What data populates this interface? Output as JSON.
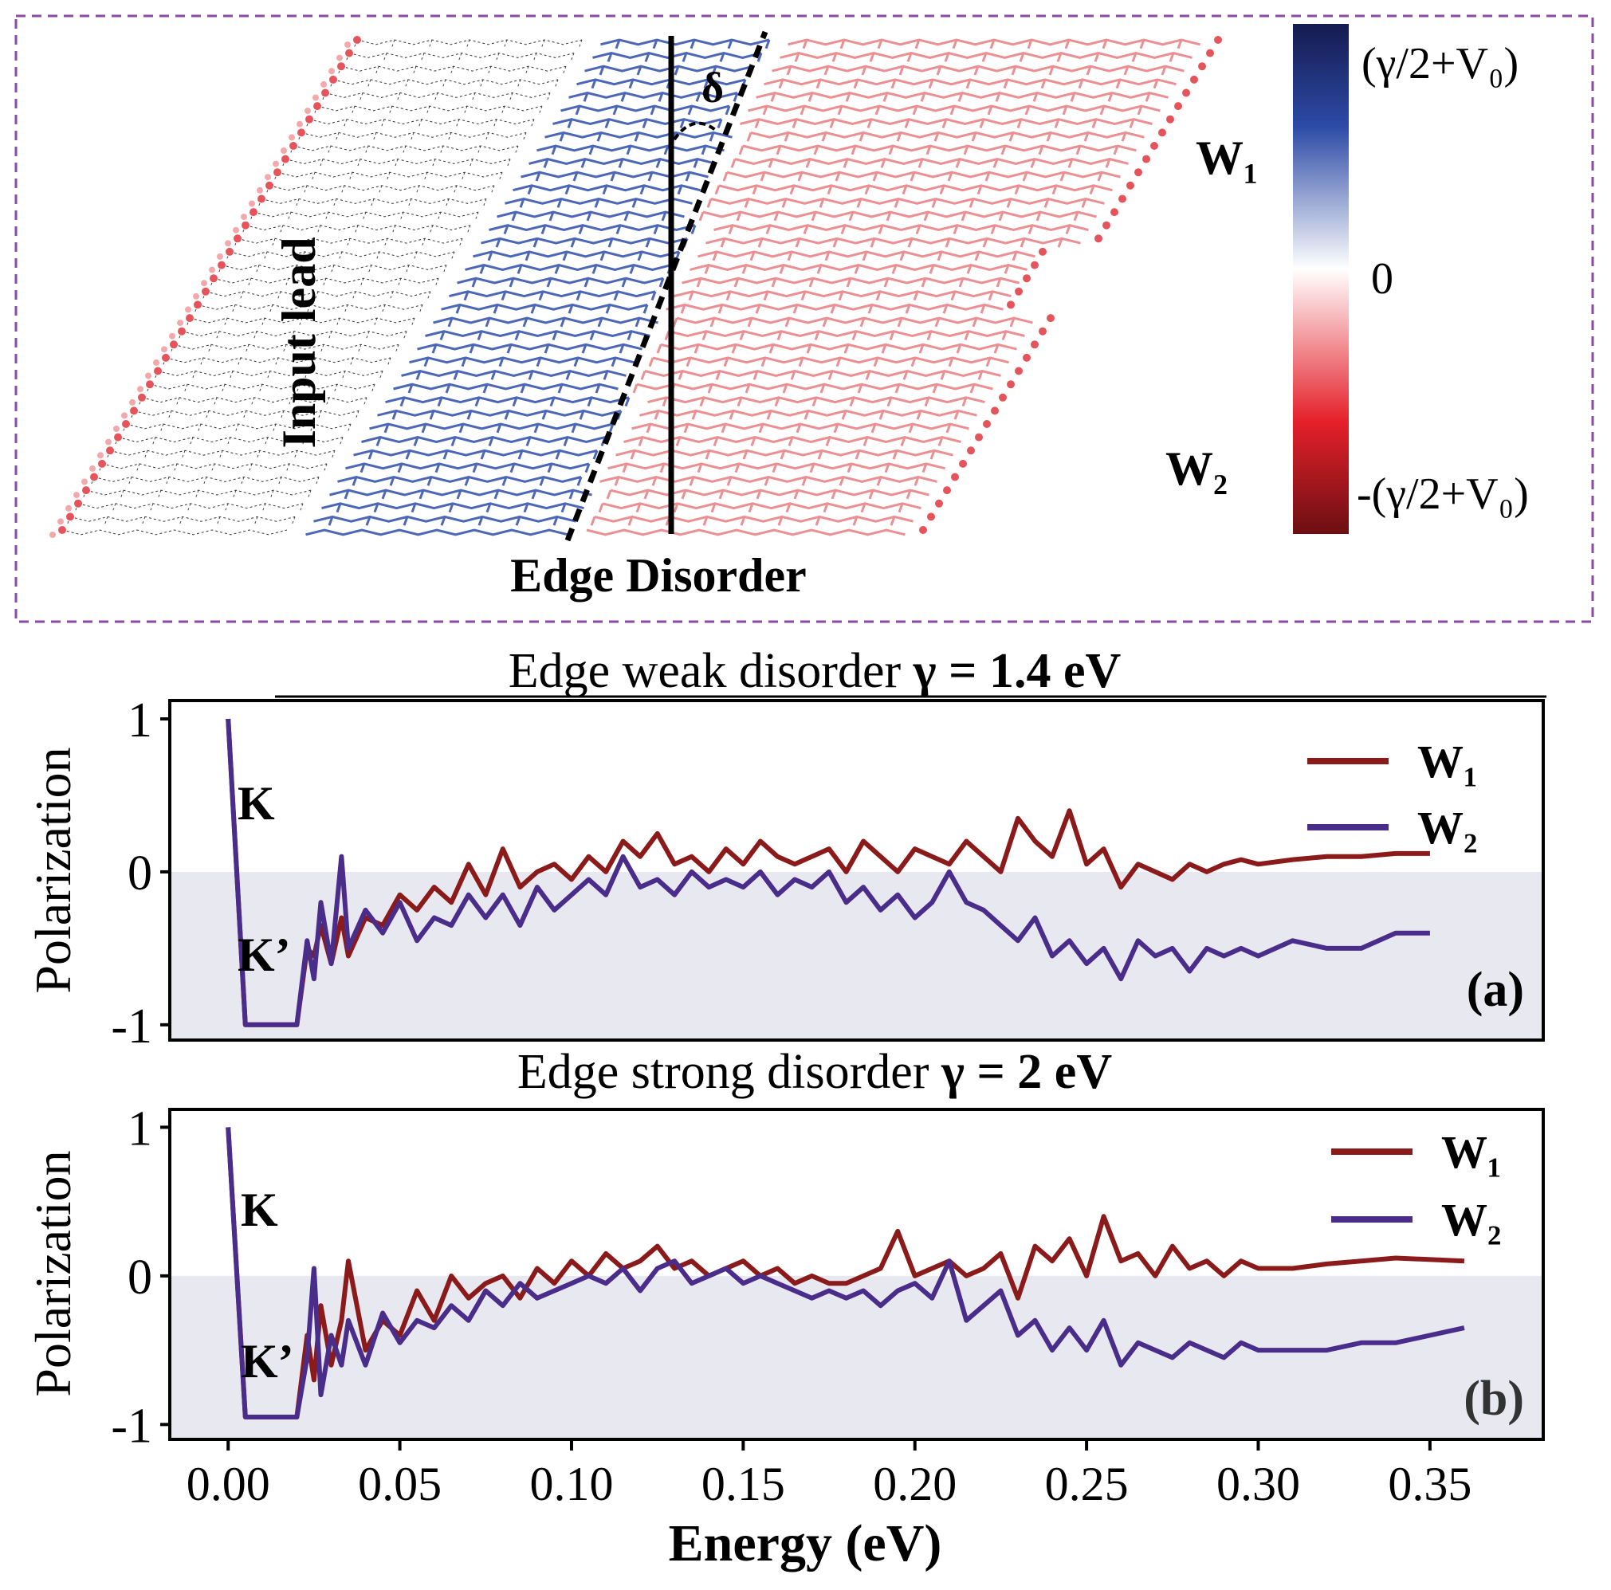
{
  "schematic": {
    "input_lead_label": "Input lead",
    "edge_disorder_label": "Edge Disorder",
    "angle_label": "δ",
    "w1_label": "W₁",
    "w2_label": "W₂",
    "colorbar": {
      "top_label": "(γ/2+V₀)",
      "mid_label": "0",
      "bottom_label": "-(γ/2+V₀)",
      "colors": [
        "#151b4f",
        "#2c4aa6",
        "#ffffff",
        "#e5202a",
        "#6b0f12"
      ]
    },
    "border_color": "#8b4aa3"
  },
  "chart_data": [
    {
      "type": "line",
      "title_plain": "Edge weak disorder ",
      "title_bold": "γ = 1.4 eV",
      "ylabel": "Polarization",
      "xlabel": "Energy (eV)",
      "xlim": [
        -0.017,
        0.383
      ],
      "ylim": [
        -1.1,
        1.12
      ],
      "yticks": [
        1,
        0,
        -1
      ],
      "ytick_labels": [
        "1",
        "0",
        "-1"
      ],
      "negative_shading": true,
      "panel_label": "(a)",
      "valley_labels": {
        "top": "K",
        "bottom": "K’"
      },
      "legend": {
        "position": "top-right",
        "entries": [
          "W₁",
          "W₂"
        ]
      },
      "series": [
        {
          "name": "W₁",
          "color": "#8b1a1a",
          "x": [
            0.0,
            0.005,
            0.01,
            0.015,
            0.02,
            0.023,
            0.025,
            0.027,
            0.03,
            0.033,
            0.035,
            0.04,
            0.045,
            0.05,
            0.055,
            0.06,
            0.065,
            0.07,
            0.075,
            0.08,
            0.085,
            0.09,
            0.095,
            0.1,
            0.105,
            0.11,
            0.115,
            0.12,
            0.125,
            0.13,
            0.135,
            0.14,
            0.145,
            0.15,
            0.155,
            0.16,
            0.165,
            0.17,
            0.175,
            0.18,
            0.185,
            0.19,
            0.195,
            0.2,
            0.205,
            0.21,
            0.215,
            0.22,
            0.225,
            0.23,
            0.235,
            0.24,
            0.245,
            0.25,
            0.255,
            0.26,
            0.265,
            0.27,
            0.275,
            0.28,
            0.285,
            0.29,
            0.295,
            0.3,
            0.31,
            0.32,
            0.33,
            0.34,
            0.35
          ],
          "values": [
            1.0,
            -1.0,
            -1.0,
            -1.0,
            -1.0,
            -0.5,
            -0.55,
            -0.35,
            -0.6,
            -0.3,
            -0.55,
            -0.3,
            -0.35,
            -0.15,
            -0.25,
            -0.1,
            -0.2,
            0.05,
            -0.15,
            0.15,
            -0.1,
            0.0,
            0.05,
            -0.05,
            0.1,
            0.0,
            0.2,
            0.1,
            0.25,
            0.05,
            0.1,
            0.0,
            0.15,
            0.05,
            0.2,
            0.1,
            0.05,
            0.1,
            0.15,
            0.0,
            0.2,
            0.1,
            0.0,
            0.15,
            0.1,
            0.05,
            0.2,
            0.1,
            0.0,
            0.35,
            0.2,
            0.1,
            0.4,
            0.05,
            0.15,
            -0.1,
            0.05,
            0.0,
            -0.05,
            0.05,
            0.0,
            0.05,
            0.08,
            0.05,
            0.08,
            0.1,
            0.1,
            0.12,
            0.12
          ]
        },
        {
          "name": "W₂",
          "color": "#4a2c8a",
          "x": [
            0.0,
            0.005,
            0.01,
            0.015,
            0.02,
            0.023,
            0.025,
            0.027,
            0.03,
            0.033,
            0.035,
            0.04,
            0.045,
            0.05,
            0.055,
            0.06,
            0.065,
            0.07,
            0.075,
            0.08,
            0.085,
            0.09,
            0.095,
            0.1,
            0.105,
            0.11,
            0.115,
            0.12,
            0.125,
            0.13,
            0.135,
            0.14,
            0.145,
            0.15,
            0.155,
            0.16,
            0.165,
            0.17,
            0.175,
            0.18,
            0.185,
            0.19,
            0.195,
            0.2,
            0.205,
            0.21,
            0.215,
            0.22,
            0.225,
            0.23,
            0.235,
            0.24,
            0.245,
            0.25,
            0.255,
            0.26,
            0.265,
            0.27,
            0.275,
            0.28,
            0.285,
            0.29,
            0.295,
            0.3,
            0.31,
            0.32,
            0.33,
            0.34,
            0.35
          ],
          "values": [
            1.0,
            -1.0,
            -1.0,
            -1.0,
            -1.0,
            -0.45,
            -0.7,
            -0.2,
            -0.6,
            0.1,
            -0.5,
            -0.25,
            -0.4,
            -0.2,
            -0.45,
            -0.3,
            -0.35,
            -0.15,
            -0.3,
            -0.15,
            -0.35,
            -0.1,
            -0.25,
            -0.15,
            -0.05,
            -0.15,
            0.1,
            -0.1,
            -0.05,
            -0.15,
            0.0,
            -0.1,
            -0.05,
            -0.1,
            0.0,
            -0.15,
            -0.05,
            -0.1,
            0.0,
            -0.2,
            -0.1,
            -0.25,
            -0.15,
            -0.3,
            -0.2,
            0.0,
            -0.2,
            -0.25,
            -0.35,
            -0.45,
            -0.3,
            -0.55,
            -0.45,
            -0.6,
            -0.5,
            -0.7,
            -0.45,
            -0.55,
            -0.5,
            -0.65,
            -0.5,
            -0.55,
            -0.5,
            -0.55,
            -0.45,
            -0.5,
            -0.5,
            -0.4,
            -0.4
          ]
        }
      ]
    },
    {
      "type": "line",
      "title_plain": "Edge strong disorder ",
      "title_bold": "γ = 2 eV",
      "ylabel": "Polarization",
      "xlabel": "Energy (eV)",
      "xlim": [
        -0.017,
        0.383
      ],
      "ylim": [
        -1.1,
        1.12
      ],
      "yticks": [
        1,
        0,
        -1
      ],
      "ytick_labels": [
        "1",
        "0",
        "-1"
      ],
      "xticks": [
        0.0,
        0.05,
        0.1,
        0.15,
        0.2,
        0.25,
        0.3,
        0.35
      ],
      "xtick_labels": [
        "0.00",
        "0.05",
        "0.10",
        "0.15",
        "0.20",
        "0.25",
        "0.30",
        "0.35"
      ],
      "negative_shading": true,
      "panel_label": "(b)",
      "valley_labels": {
        "top": "K",
        "bottom": "K’"
      },
      "legend": {
        "position": "top-right",
        "entries": [
          "W₁",
          "W₂"
        ]
      },
      "series": [
        {
          "name": "W₁",
          "color": "#8b1a1a",
          "x": [
            0.0,
            0.005,
            0.01,
            0.015,
            0.02,
            0.023,
            0.025,
            0.027,
            0.03,
            0.033,
            0.035,
            0.04,
            0.045,
            0.05,
            0.055,
            0.06,
            0.065,
            0.07,
            0.075,
            0.08,
            0.085,
            0.09,
            0.095,
            0.1,
            0.105,
            0.11,
            0.115,
            0.12,
            0.125,
            0.13,
            0.135,
            0.14,
            0.145,
            0.15,
            0.155,
            0.16,
            0.165,
            0.17,
            0.175,
            0.18,
            0.185,
            0.19,
            0.195,
            0.2,
            0.205,
            0.21,
            0.215,
            0.22,
            0.225,
            0.23,
            0.235,
            0.24,
            0.245,
            0.25,
            0.255,
            0.26,
            0.265,
            0.27,
            0.275,
            0.28,
            0.285,
            0.29,
            0.295,
            0.3,
            0.31,
            0.32,
            0.33,
            0.34,
            0.36
          ],
          "values": [
            1.0,
            -0.95,
            -0.95,
            -0.95,
            -0.95,
            -0.4,
            -0.7,
            -0.2,
            -0.6,
            -0.3,
            0.1,
            -0.5,
            -0.3,
            -0.4,
            -0.1,
            -0.3,
            0.0,
            -0.15,
            -0.05,
            0.0,
            -0.15,
            0.05,
            -0.05,
            0.1,
            0.0,
            0.15,
            0.05,
            0.1,
            0.2,
            0.05,
            0.1,
            0.0,
            0.05,
            0.1,
            0.0,
            0.05,
            -0.05,
            0.0,
            -0.05,
            -0.05,
            0.0,
            0.05,
            0.3,
            0.0,
            0.05,
            0.1,
            0.0,
            0.05,
            0.15,
            -0.15,
            0.2,
            0.1,
            0.25,
            0.0,
            0.4,
            0.1,
            0.15,
            0.0,
            0.2,
            0.05,
            0.1,
            0.0,
            0.1,
            0.05,
            0.05,
            0.08,
            0.1,
            0.12,
            0.1
          ]
        },
        {
          "name": "W₂",
          "color": "#4a2c8a",
          "x": [
            0.0,
            0.005,
            0.01,
            0.015,
            0.02,
            0.023,
            0.025,
            0.027,
            0.03,
            0.033,
            0.035,
            0.04,
            0.045,
            0.05,
            0.055,
            0.06,
            0.065,
            0.07,
            0.075,
            0.08,
            0.085,
            0.09,
            0.095,
            0.1,
            0.105,
            0.11,
            0.115,
            0.12,
            0.125,
            0.13,
            0.135,
            0.14,
            0.145,
            0.15,
            0.155,
            0.16,
            0.165,
            0.17,
            0.175,
            0.18,
            0.185,
            0.19,
            0.195,
            0.2,
            0.205,
            0.21,
            0.215,
            0.22,
            0.225,
            0.23,
            0.235,
            0.24,
            0.245,
            0.25,
            0.255,
            0.26,
            0.265,
            0.27,
            0.275,
            0.28,
            0.285,
            0.29,
            0.295,
            0.3,
            0.31,
            0.32,
            0.33,
            0.34,
            0.36
          ],
          "values": [
            1.0,
            -0.95,
            -0.95,
            -0.95,
            -0.95,
            -0.55,
            0.05,
            -0.8,
            -0.4,
            -0.6,
            -0.3,
            -0.6,
            -0.25,
            -0.45,
            -0.3,
            -0.35,
            -0.2,
            -0.3,
            -0.1,
            -0.2,
            -0.05,
            -0.15,
            -0.1,
            -0.05,
            0.0,
            -0.05,
            0.05,
            -0.1,
            0.05,
            0.1,
            -0.05,
            0.0,
            0.05,
            -0.05,
            0.0,
            -0.05,
            -0.1,
            -0.15,
            -0.1,
            -0.15,
            -0.1,
            -0.2,
            -0.1,
            -0.05,
            -0.15,
            0.1,
            -0.3,
            -0.2,
            -0.1,
            -0.4,
            -0.3,
            -0.5,
            -0.35,
            -0.5,
            -0.3,
            -0.6,
            -0.45,
            -0.5,
            -0.55,
            -0.45,
            -0.5,
            -0.55,
            -0.45,
            -0.5,
            -0.5,
            -0.5,
            -0.45,
            -0.45,
            -0.35
          ]
        }
      ]
    }
  ]
}
